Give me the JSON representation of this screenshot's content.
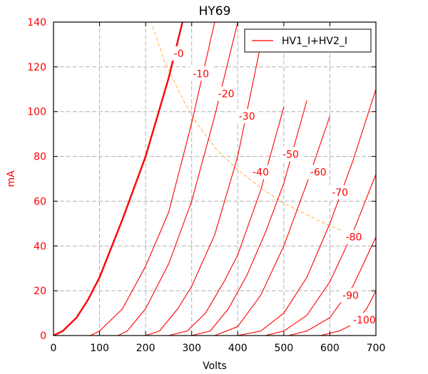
{
  "chart_data": {
    "type": "line",
    "title": "HY69",
    "xlabel": "Volts",
    "ylabel": "mA",
    "xlim": [
      0,
      700
    ],
    "ylim": [
      0,
      140
    ],
    "xticks": [
      0,
      100,
      200,
      300,
      400,
      500,
      600,
      700
    ],
    "yticks": [
      0,
      20,
      40,
      60,
      80,
      100,
      120,
      140
    ],
    "grid": true,
    "legend": {
      "entries": [
        "HV1_I+HV2_I"
      ],
      "placement": "top-right"
    },
    "colors": {
      "curves": "#ff0000",
      "labels_y": "#ff0000",
      "dissipation": "#ffb347",
      "grid": "#b0b0b0"
    },
    "series": [
      {
        "label": "-0",
        "bold": true,
        "x": [
          0,
          20,
          50,
          75,
          100,
          150,
          200,
          250,
          280
        ],
        "y": [
          0,
          2,
          8,
          16,
          26,
          52,
          80,
          115,
          140
        ]
      },
      {
        "label": "-10",
        "x": [
          80,
          100,
          150,
          200,
          250,
          300,
          350
        ],
        "y": [
          0,
          2,
          12,
          31,
          55,
          95,
          140
        ]
      },
      {
        "label": "-20",
        "x": [
          140,
          160,
          200,
          250,
          300,
          350,
          400
        ],
        "y": [
          0,
          2,
          12,
          32,
          60,
          98,
          140
        ]
      },
      {
        "label": "-30",
        "x": [
          200,
          230,
          270,
          300,
          350,
          400,
          450
        ],
        "y": [
          0,
          2,
          12,
          22,
          45,
          80,
          130
        ]
      },
      {
        "label": "-40",
        "x": [
          250,
          290,
          330,
          370,
          400,
          450,
          500
        ],
        "y": [
          0,
          2,
          10,
          24,
          36,
          65,
          102
        ]
      },
      {
        "label": "-50",
        "x": [
          300,
          340,
          380,
          420,
          460,
          500,
          550
        ],
        "y": [
          0,
          2,
          12,
          27,
          46,
          68,
          105
        ]
      },
      {
        "label": "-60",
        "x": [
          350,
          400,
          450,
          500,
          550,
          600
        ],
        "y": [
          0,
          4,
          18,
          40,
          68,
          98
        ]
      },
      {
        "label": "-70",
        "x": [
          400,
          450,
          500,
          550,
          600,
          650,
          700
        ],
        "y": [
          0,
          2,
          10,
          26,
          50,
          78,
          110
        ]
      },
      {
        "label": "-80",
        "x": [
          460,
          500,
          550,
          600,
          650,
          700
        ],
        "y": [
          0,
          2,
          9,
          24,
          46,
          72
        ]
      },
      {
        "label": "-90",
        "x": [
          510,
          550,
          600,
          650,
          700
        ],
        "y": [
          0,
          2,
          8,
          22,
          44
        ]
      },
      {
        "label": "-100",
        "x": [
          580,
          620,
          650,
          680,
          700
        ],
        "y": [
          0,
          2,
          5,
          12,
          20
        ]
      }
    ],
    "curve_label_positions": [
      {
        "label": "-0",
        "x": 272,
        "y": 126
      },
      {
        "label": "-10",
        "x": 320,
        "y": 117
      },
      {
        "label": "-20",
        "x": 375,
        "y": 108
      },
      {
        "label": "-30",
        "x": 420,
        "y": 98
      },
      {
        "label": "-40",
        "x": 450,
        "y": 73
      },
      {
        "label": "-50",
        "x": 515,
        "y": 81
      },
      {
        "label": "-60",
        "x": 575,
        "y": 73
      },
      {
        "label": "-70",
        "x": 622,
        "y": 64
      },
      {
        "label": "-80",
        "x": 652,
        "y": 44
      },
      {
        "label": "-90",
        "x": 645,
        "y": 18
      },
      {
        "label": "-100",
        "x": 675,
        "y": 7
      }
    ],
    "dissipation_curve": {
      "x": [
        215,
        240,
        270,
        300,
        350,
        400,
        450,
        500,
        550,
        600,
        650
      ],
      "y": [
        138,
        123,
        110,
        98,
        84,
        74,
        66,
        59,
        54,
        49,
        45
      ]
    }
  }
}
